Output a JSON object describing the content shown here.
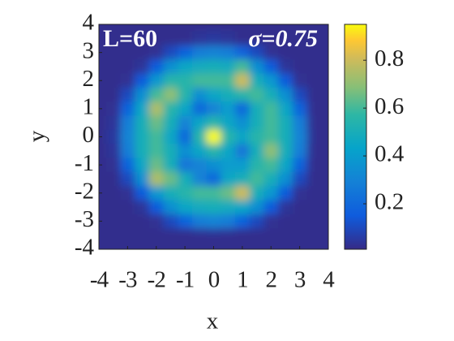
{
  "chart_data": {
    "type": "heatmap",
    "annotations": [
      "L=60",
      "σ=0.75"
    ],
    "x_label": "x",
    "y_label": "y",
    "x": [
      -4,
      -3.5,
      -3,
      -2.5,
      -2,
      -1.5,
      -1,
      -0.5,
      0,
      0.5,
      1,
      1.5,
      2,
      2.5,
      3,
      3.5,
      4
    ],
    "y": [
      4,
      3.5,
      3,
      2.5,
      2,
      1.5,
      1,
      0.5,
      0,
      -0.5,
      -1,
      -1.5,
      -2,
      -2.5,
      -3,
      -3.5,
      -4
    ],
    "z": [
      [
        0.02,
        0.02,
        0.02,
        0.02,
        0.02,
        0.02,
        0.02,
        0.02,
        0.02,
        0.02,
        0.02,
        0.02,
        0.02,
        0.02,
        0.02,
        0.02,
        0.02
      ],
      [
        0.02,
        0.02,
        0.02,
        0.02,
        0.02,
        0.02,
        0.02,
        0.04,
        0.05,
        0.04,
        0.02,
        0.02,
        0.02,
        0.02,
        0.02,
        0.02,
        0.02
      ],
      [
        0.02,
        0.02,
        0.02,
        0.02,
        0.03,
        0.1,
        0.18,
        0.28,
        0.3,
        0.28,
        0.18,
        0.1,
        0.03,
        0.02,
        0.02,
        0.02,
        0.02
      ],
      [
        0.02,
        0.02,
        0.02,
        0.04,
        0.15,
        0.35,
        0.45,
        0.48,
        0.5,
        0.48,
        0.6,
        0.35,
        0.15,
        0.04,
        0.02,
        0.02,
        0.02
      ],
      [
        0.02,
        0.02,
        0.03,
        0.15,
        0.38,
        0.55,
        0.55,
        0.6,
        0.6,
        0.6,
        0.8,
        0.5,
        0.38,
        0.15,
        0.03,
        0.02,
        0.02
      ],
      [
        0.02,
        0.02,
        0.1,
        0.35,
        0.6,
        0.7,
        0.55,
        0.35,
        0.45,
        0.5,
        0.55,
        0.6,
        0.5,
        0.35,
        0.1,
        0.02,
        0.02
      ],
      [
        0.02,
        0.03,
        0.18,
        0.45,
        0.75,
        0.55,
        0.45,
        0.2,
        0.3,
        0.4,
        0.2,
        0.5,
        0.6,
        0.45,
        0.18,
        0.03,
        0.02
      ],
      [
        0.02,
        0.04,
        0.28,
        0.5,
        0.65,
        0.5,
        0.3,
        0.45,
        0.55,
        0.45,
        0.35,
        0.5,
        0.6,
        0.5,
        0.28,
        0.04,
        0.02
      ],
      [
        0.02,
        0.05,
        0.3,
        0.5,
        0.6,
        0.45,
        0.2,
        0.55,
        0.95,
        0.55,
        0.45,
        0.55,
        0.6,
        0.5,
        0.3,
        0.05,
        0.02
      ],
      [
        0.02,
        0.04,
        0.28,
        0.5,
        0.6,
        0.5,
        0.35,
        0.45,
        0.55,
        0.45,
        0.25,
        0.5,
        0.7,
        0.5,
        0.28,
        0.04,
        0.02
      ],
      [
        0.02,
        0.03,
        0.18,
        0.45,
        0.65,
        0.5,
        0.25,
        0.3,
        0.35,
        0.4,
        0.4,
        0.55,
        0.6,
        0.45,
        0.18,
        0.03,
        0.02
      ],
      [
        0.02,
        0.02,
        0.1,
        0.35,
        0.75,
        0.65,
        0.5,
        0.3,
        0.2,
        0.45,
        0.5,
        0.6,
        0.5,
        0.35,
        0.1,
        0.02,
        0.02
      ],
      [
        0.02,
        0.02,
        0.03,
        0.15,
        0.38,
        0.5,
        0.55,
        0.6,
        0.6,
        0.65,
        0.8,
        0.5,
        0.38,
        0.15,
        0.03,
        0.02,
        0.02
      ],
      [
        0.02,
        0.02,
        0.02,
        0.04,
        0.15,
        0.35,
        0.45,
        0.48,
        0.5,
        0.48,
        0.45,
        0.35,
        0.15,
        0.04,
        0.02,
        0.02,
        0.02
      ],
      [
        0.02,
        0.02,
        0.02,
        0.02,
        0.03,
        0.1,
        0.18,
        0.28,
        0.3,
        0.28,
        0.18,
        0.1,
        0.03,
        0.02,
        0.02,
        0.02,
        0.02
      ],
      [
        0.02,
        0.02,
        0.02,
        0.02,
        0.02,
        0.02,
        0.02,
        0.04,
        0.05,
        0.04,
        0.02,
        0.02,
        0.02,
        0.02,
        0.02,
        0.02,
        0.02
      ],
      [
        0.02,
        0.02,
        0.02,
        0.02,
        0.02,
        0.02,
        0.02,
        0.02,
        0.02,
        0.02,
        0.02,
        0.02,
        0.02,
        0.02,
        0.02,
        0.02,
        0.02
      ]
    ],
    "xlim": [
      -4,
      4
    ],
    "ylim": [
      -4,
      4
    ],
    "xticks": [
      -4,
      -3,
      -2,
      -1,
      0,
      1,
      2,
      3,
      4
    ],
    "yticks": [
      -4,
      -3,
      -2,
      -1,
      0,
      1,
      2,
      3,
      4
    ],
    "clim": [
      0.01,
      0.95
    ],
    "cticks": [
      0.2,
      0.4,
      0.6,
      0.8
    ],
    "colormap": "parula"
  }
}
